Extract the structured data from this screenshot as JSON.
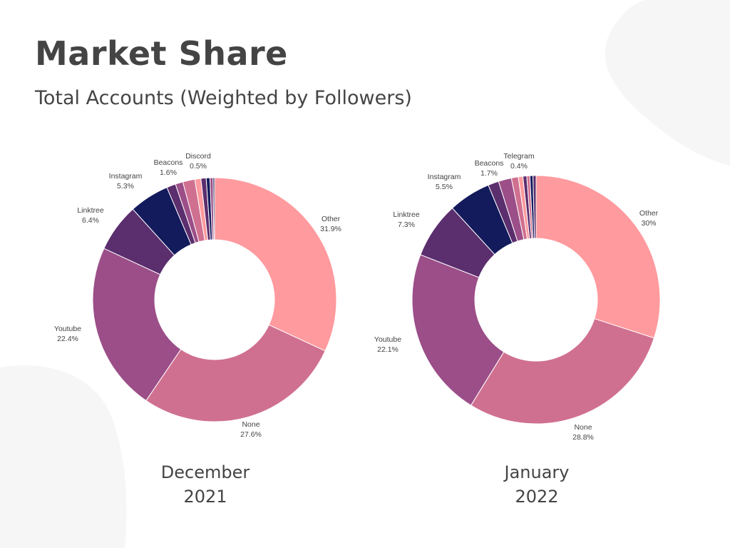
{
  "title": "Market Share",
  "subtitle": "Total Accounts (Weighted by Followers)",
  "colors": {
    "background": "#ffffff",
    "decor": "#f6f6f6",
    "text": "#444444"
  },
  "chart_data": [
    {
      "type": "pie",
      "donut": true,
      "caption_line1": "December",
      "caption_line2": "2021",
      "slices": [
        {
          "label": "Other",
          "value": 31.9,
          "display": "31.9%",
          "color": "#ff9a9e",
          "show_label": true
        },
        {
          "label": "None",
          "value": 27.6,
          "display": "27.6%",
          "color": "#d07090",
          "show_label": true
        },
        {
          "label": "Youtube",
          "value": 22.4,
          "display": "22.4%",
          "color": "#9b4e88",
          "show_label": true
        },
        {
          "label": "Linktree",
          "value": 6.4,
          "display": "6.4%",
          "color": "#5b2e6e",
          "show_label": true
        },
        {
          "label": "Instagram",
          "value": 5.3,
          "display": "5.3%",
          "color": "#141b5c",
          "show_label": true
        },
        {
          "label": "",
          "value": 1.2,
          "display": "",
          "color": "#5b2e6e",
          "show_label": false
        },
        {
          "label": "",
          "value": 1.0,
          "display": "",
          "color": "#9b4e88",
          "show_label": false
        },
        {
          "label": "Beacons",
          "value": 1.6,
          "display": "1.6%",
          "color": "#d07090",
          "show_label": true
        },
        {
          "label": "",
          "value": 0.8,
          "display": "",
          "color": "#ff9a9e",
          "show_label": false
        },
        {
          "label": "",
          "value": 0.7,
          "display": "",
          "color": "#5b2e6e",
          "show_label": false
        },
        {
          "label": "Discord",
          "value": 0.5,
          "display": "0.5%",
          "color": "#141b5c",
          "show_label": true
        },
        {
          "label": "",
          "value": 0.4,
          "display": "",
          "color": "#9b4e88",
          "show_label": false
        },
        {
          "label": "",
          "value": 0.2,
          "display": "",
          "color": "#141b5c",
          "show_label": false
        }
      ]
    },
    {
      "type": "pie",
      "donut": true,
      "caption_line1": "January",
      "caption_line2": "2022",
      "slices": [
        {
          "label": "Other",
          "value": 30,
          "display": "30%",
          "color": "#ff9a9e",
          "show_label": true
        },
        {
          "label": "None",
          "value": 28.8,
          "display": "28.8%",
          "color": "#d07090",
          "show_label": true
        },
        {
          "label": "Youtube",
          "value": 22.1,
          "display": "22.1%",
          "color": "#9b4e88",
          "show_label": true
        },
        {
          "label": "Linktree",
          "value": 7.3,
          "display": "7.3%",
          "color": "#5b2e6e",
          "show_label": true
        },
        {
          "label": "Instagram",
          "value": 5.5,
          "display": "5.5%",
          "color": "#141b5c",
          "show_label": true
        },
        {
          "label": "",
          "value": 1.4,
          "display": "",
          "color": "#5b2e6e",
          "show_label": false
        },
        {
          "label": "Beacons",
          "value": 1.7,
          "display": "1.7%",
          "color": "#9b4e88",
          "show_label": true
        },
        {
          "label": "",
          "value": 0.9,
          "display": "",
          "color": "#d07090",
          "show_label": false
        },
        {
          "label": "",
          "value": 0.6,
          "display": "",
          "color": "#ff9a9e",
          "show_label": false
        },
        {
          "label": "",
          "value": 0.5,
          "display": "",
          "color": "#5b2e6e",
          "show_label": false
        },
        {
          "label": "Telegram",
          "value": 0.4,
          "display": "0.4%",
          "color": "#d07090",
          "show_label": true
        },
        {
          "label": "",
          "value": 0.4,
          "display": "",
          "color": "#141b5c",
          "show_label": false
        },
        {
          "label": "",
          "value": 0.4,
          "display": "",
          "color": "#5b2e6e",
          "show_label": false
        }
      ]
    }
  ]
}
